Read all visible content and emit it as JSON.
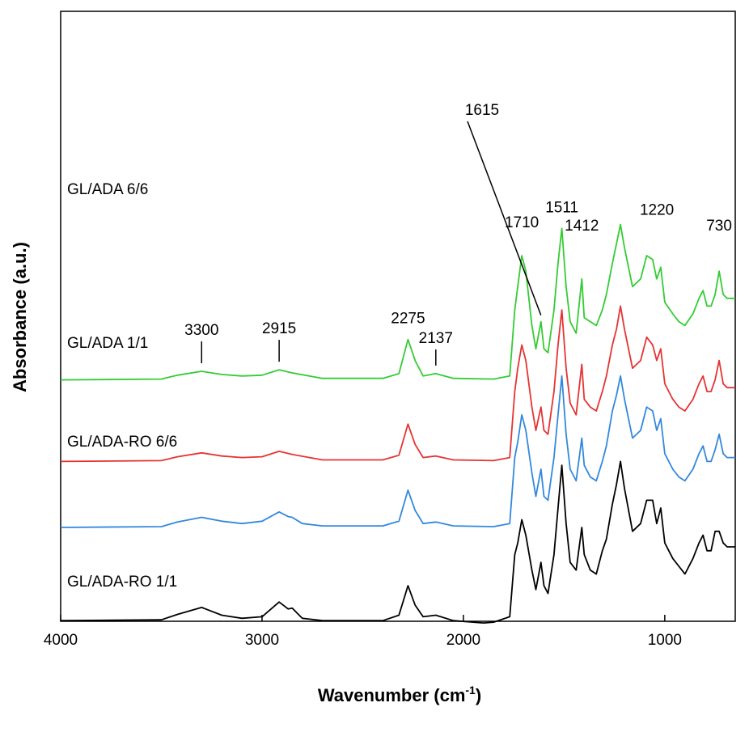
{
  "chart_data": {
    "type": "line",
    "xlabel": "Wavenumber (cm",
    "xlabel_sup": "-1",
    "xlabel_end": ")",
    "ylabel": "Absorbance (a.u.)",
    "xlim": [
      4000,
      650
    ],
    "x_reversed": true,
    "y_ticks_shown": false,
    "xticks": [
      4000,
      3000,
      2000,
      1000
    ],
    "xtick_labels": [
      "4000",
      "3000",
      "2000",
      "1000"
    ],
    "legend": "none (series labelled inline)",
    "series": [
      {
        "name": "GL/ADA 6/6",
        "color": "#33cc33",
        "baseline": 3.15,
        "points": [
          [
            4000,
            0.0
          ],
          [
            3500,
            0.01
          ],
          [
            3420,
            0.06
          ],
          [
            3300,
            0.11
          ],
          [
            3200,
            0.07
          ],
          [
            3100,
            0.05
          ],
          [
            3000,
            0.06
          ],
          [
            2915,
            0.13
          ],
          [
            2850,
            0.09
          ],
          [
            2700,
            0.02
          ],
          [
            2400,
            0.02
          ],
          [
            2320,
            0.08
          ],
          [
            2275,
            0.52
          ],
          [
            2240,
            0.25
          ],
          [
            2200,
            0.05
          ],
          [
            2137,
            0.08
          ],
          [
            2050,
            0.02
          ],
          [
            1850,
            0.01
          ],
          [
            1770,
            0.05
          ],
          [
            1745,
            0.9
          ],
          [
            1730,
            1.2
          ],
          [
            1710,
            1.6
          ],
          [
            1690,
            1.4
          ],
          [
            1660,
            0.7
          ],
          [
            1640,
            0.4
          ],
          [
            1615,
            0.75
          ],
          [
            1600,
            0.4
          ],
          [
            1580,
            0.35
          ],
          [
            1550,
            0.9
          ],
          [
            1530,
            1.5
          ],
          [
            1511,
            1.95
          ],
          [
            1490,
            1.2
          ],
          [
            1470,
            0.75
          ],
          [
            1440,
            0.6
          ],
          [
            1412,
            1.3
          ],
          [
            1400,
            0.8
          ],
          [
            1370,
            0.75
          ],
          [
            1340,
            0.7
          ],
          [
            1310,
            0.9
          ],
          [
            1290,
            1.1
          ],
          [
            1260,
            1.5
          ],
          [
            1240,
            1.75
          ],
          [
            1220,
            2.0
          ],
          [
            1200,
            1.7
          ],
          [
            1160,
            1.2
          ],
          [
            1120,
            1.3
          ],
          [
            1090,
            1.6
          ],
          [
            1060,
            1.55
          ],
          [
            1040,
            1.3
          ],
          [
            1020,
            1.45
          ],
          [
            1000,
            1.0
          ],
          [
            960,
            0.85
          ],
          [
            930,
            0.75
          ],
          [
            900,
            0.7
          ],
          [
            860,
            0.85
          ],
          [
            830,
            1.05
          ],
          [
            810,
            1.15
          ],
          [
            790,
            0.95
          ],
          [
            770,
            0.95
          ],
          [
            750,
            1.1
          ],
          [
            730,
            1.4
          ],
          [
            710,
            1.1
          ],
          [
            690,
            1.05
          ],
          [
            650,
            1.05
          ]
        ]
      },
      {
        "name": "GL/ADA 1/1",
        "color": "#e63333",
        "baseline": 2.1,
        "points": [
          [
            4000,
            0.0
          ],
          [
            3500,
            0.01
          ],
          [
            3420,
            0.06
          ],
          [
            3300,
            0.11
          ],
          [
            3200,
            0.07
          ],
          [
            3100,
            0.05
          ],
          [
            3000,
            0.06
          ],
          [
            2915,
            0.13
          ],
          [
            2850,
            0.09
          ],
          [
            2700,
            0.02
          ],
          [
            2400,
            0.02
          ],
          [
            2320,
            0.08
          ],
          [
            2275,
            0.48
          ],
          [
            2240,
            0.22
          ],
          [
            2200,
            0.05
          ],
          [
            2137,
            0.07
          ],
          [
            2050,
            0.02
          ],
          [
            1850,
            0.01
          ],
          [
            1770,
            0.05
          ],
          [
            1745,
            0.9
          ],
          [
            1730,
            1.2
          ],
          [
            1710,
            1.5
          ],
          [
            1690,
            1.3
          ],
          [
            1660,
            0.7
          ],
          [
            1640,
            0.4
          ],
          [
            1615,
            0.7
          ],
          [
            1600,
            0.4
          ],
          [
            1580,
            0.35
          ],
          [
            1550,
            0.9
          ],
          [
            1530,
            1.5
          ],
          [
            1511,
            1.95
          ],
          [
            1490,
            1.2
          ],
          [
            1470,
            0.75
          ],
          [
            1440,
            0.6
          ],
          [
            1412,
            1.25
          ],
          [
            1400,
            0.8
          ],
          [
            1370,
            0.7
          ],
          [
            1340,
            0.65
          ],
          [
            1310,
            0.9
          ],
          [
            1290,
            1.1
          ],
          [
            1260,
            1.5
          ],
          [
            1240,
            1.7
          ],
          [
            1220,
            2.0
          ],
          [
            1200,
            1.7
          ],
          [
            1160,
            1.2
          ],
          [
            1120,
            1.3
          ],
          [
            1090,
            1.6
          ],
          [
            1060,
            1.5
          ],
          [
            1040,
            1.3
          ],
          [
            1020,
            1.45
          ],
          [
            1000,
            1.0
          ],
          [
            960,
            0.8
          ],
          [
            930,
            0.7
          ],
          [
            900,
            0.65
          ],
          [
            860,
            0.8
          ],
          [
            830,
            1.0
          ],
          [
            810,
            1.1
          ],
          [
            790,
            0.9
          ],
          [
            770,
            0.9
          ],
          [
            750,
            1.05
          ],
          [
            730,
            1.3
          ],
          [
            710,
            1.0
          ],
          [
            690,
            0.95
          ],
          [
            650,
            0.95
          ]
        ]
      },
      {
        "name": "GL/ADA-RO 6/6",
        "color": "#3388dd",
        "baseline": 1.25,
        "points": [
          [
            4000,
            0.0
          ],
          [
            3500,
            0.01
          ],
          [
            3420,
            0.07
          ],
          [
            3300,
            0.13
          ],
          [
            3200,
            0.08
          ],
          [
            3100,
            0.05
          ],
          [
            3000,
            0.08
          ],
          [
            2915,
            0.2
          ],
          [
            2870,
            0.14
          ],
          [
            2850,
            0.13
          ],
          [
            2800,
            0.05
          ],
          [
            2700,
            0.02
          ],
          [
            2400,
            0.02
          ],
          [
            2320,
            0.08
          ],
          [
            2275,
            0.48
          ],
          [
            2240,
            0.22
          ],
          [
            2200,
            0.05
          ],
          [
            2137,
            0.07
          ],
          [
            2050,
            0.02
          ],
          [
            1850,
            0.01
          ],
          [
            1770,
            0.05
          ],
          [
            1745,
            0.9
          ],
          [
            1730,
            1.1
          ],
          [
            1710,
            1.45
          ],
          [
            1690,
            1.25
          ],
          [
            1660,
            0.7
          ],
          [
            1640,
            0.4
          ],
          [
            1615,
            0.75
          ],
          [
            1600,
            0.4
          ],
          [
            1580,
            0.35
          ],
          [
            1550,
            0.9
          ],
          [
            1530,
            1.45
          ],
          [
            1511,
            1.95
          ],
          [
            1490,
            1.2
          ],
          [
            1470,
            0.75
          ],
          [
            1440,
            0.6
          ],
          [
            1412,
            1.15
          ],
          [
            1400,
            0.8
          ],
          [
            1370,
            0.65
          ],
          [
            1340,
            0.6
          ],
          [
            1310,
            0.85
          ],
          [
            1290,
            1.05
          ],
          [
            1260,
            1.5
          ],
          [
            1240,
            1.7
          ],
          [
            1220,
            1.95
          ],
          [
            1200,
            1.65
          ],
          [
            1160,
            1.15
          ],
          [
            1120,
            1.25
          ],
          [
            1090,
            1.55
          ],
          [
            1060,
            1.5
          ],
          [
            1040,
            1.25
          ],
          [
            1020,
            1.4
          ],
          [
            1000,
            0.95
          ],
          [
            960,
            0.75
          ],
          [
            930,
            0.65
          ],
          [
            900,
            0.6
          ],
          [
            860,
            0.75
          ],
          [
            830,
            0.95
          ],
          [
            810,
            1.05
          ],
          [
            790,
            0.85
          ],
          [
            770,
            0.85
          ],
          [
            750,
            1.0
          ],
          [
            730,
            1.2
          ],
          [
            710,
            0.95
          ],
          [
            690,
            0.9
          ],
          [
            650,
            0.9
          ]
        ]
      },
      {
        "name": "GL/ADA-RO 1/1",
        "color": "#000000",
        "baseline": 0.0,
        "points": [
          [
            4000,
            0.05
          ],
          [
            3500,
            0.06
          ],
          [
            3420,
            0.13
          ],
          [
            3300,
            0.22
          ],
          [
            3200,
            0.12
          ],
          [
            3100,
            0.08
          ],
          [
            3000,
            0.1
          ],
          [
            2915,
            0.29
          ],
          [
            2870,
            0.2
          ],
          [
            2850,
            0.21
          ],
          [
            2800,
            0.08
          ],
          [
            2700,
            0.05
          ],
          [
            2400,
            0.05
          ],
          [
            2320,
            0.12
          ],
          [
            2275,
            0.5
          ],
          [
            2240,
            0.25
          ],
          [
            2200,
            0.1
          ],
          [
            2137,
            0.12
          ],
          [
            2050,
            0.05
          ],
          [
            1900,
            0.02
          ],
          [
            1850,
            0.03
          ],
          [
            1770,
            0.1
          ],
          [
            1745,
            0.9
          ],
          [
            1730,
            1.05
          ],
          [
            1710,
            1.35
          ],
          [
            1690,
            1.15
          ],
          [
            1660,
            0.7
          ],
          [
            1640,
            0.45
          ],
          [
            1615,
            0.8
          ],
          [
            1600,
            0.5
          ],
          [
            1580,
            0.4
          ],
          [
            1550,
            0.9
          ],
          [
            1530,
            1.5
          ],
          [
            1511,
            2.05
          ],
          [
            1490,
            1.3
          ],
          [
            1470,
            0.8
          ],
          [
            1440,
            0.7
          ],
          [
            1412,
            1.25
          ],
          [
            1400,
            0.9
          ],
          [
            1370,
            0.7
          ],
          [
            1340,
            0.65
          ],
          [
            1310,
            0.95
          ],
          [
            1290,
            1.1
          ],
          [
            1260,
            1.55
          ],
          [
            1240,
            1.8
          ],
          [
            1220,
            2.1
          ],
          [
            1200,
            1.75
          ],
          [
            1160,
            1.2
          ],
          [
            1120,
            1.3
          ],
          [
            1090,
            1.6
          ],
          [
            1060,
            1.6
          ],
          [
            1040,
            1.3
          ],
          [
            1020,
            1.5
          ],
          [
            1000,
            1.05
          ],
          [
            960,
            0.85
          ],
          [
            930,
            0.75
          ],
          [
            900,
            0.65
          ],
          [
            860,
            0.85
          ],
          [
            830,
            1.05
          ],
          [
            810,
            1.15
          ],
          [
            790,
            0.95
          ],
          [
            770,
            0.95
          ],
          [
            750,
            1.2
          ],
          [
            730,
            1.2
          ],
          [
            710,
            1.05
          ],
          [
            690,
            1.0
          ],
          [
            650,
            1.0
          ]
        ]
      }
    ],
    "peak_annotations": [
      {
        "label": "3300",
        "x": 3300
      },
      {
        "label": "2915",
        "x": 2915
      },
      {
        "label": "2275",
        "x": 2275
      },
      {
        "label": "2137",
        "x": 2137
      },
      {
        "label": "1710",
        "x": 1710
      },
      {
        "label": "1615",
        "x": 1615
      },
      {
        "label": "1511",
        "x": 1511
      },
      {
        "label": "1412",
        "x": 1412
      },
      {
        "label": "1220",
        "x": 1220
      },
      {
        "label": "730",
        "x": 730
      }
    ]
  }
}
